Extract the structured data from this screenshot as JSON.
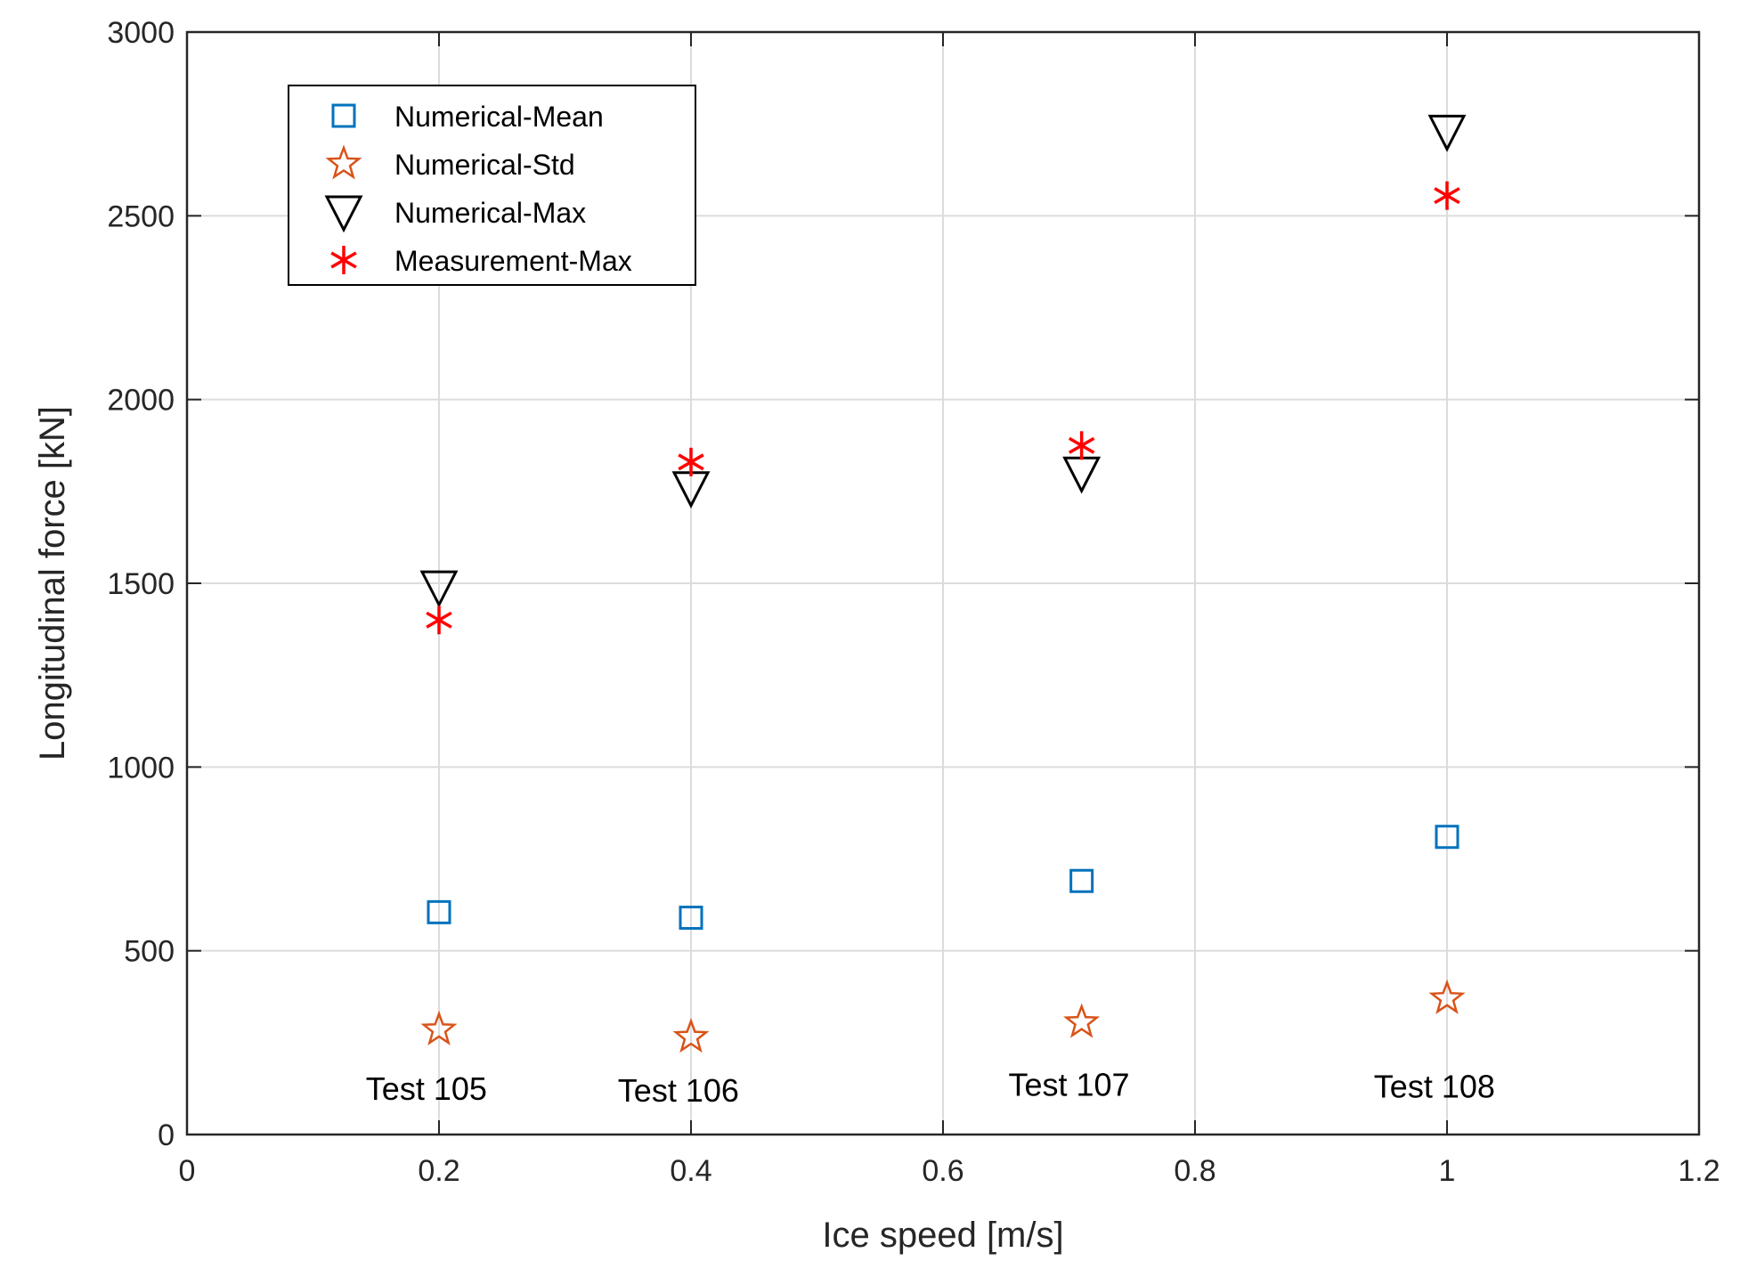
{
  "chart_data": {
    "type": "scatter",
    "title": "",
    "xlabel": "Ice speed [m/s]",
    "ylabel": "Longitudinal force [kN]",
    "xlim": [
      0,
      1.2
    ],
    "ylim": [
      0,
      3000
    ],
    "xticks": [
      0,
      0.2,
      0.4,
      0.6,
      0.8,
      1,
      1.2
    ],
    "xtick_labels": [
      "0",
      "0.2",
      "0.4",
      "0.6",
      "0.8",
      "1",
      "1.2"
    ],
    "yticks": [
      0,
      500,
      1000,
      1500,
      2000,
      2500,
      3000
    ],
    "ytick_labels": [
      "0",
      "500",
      "1000",
      "1500",
      "2000",
      "2500",
      "3000"
    ],
    "grid": true,
    "legend_position": "top-left",
    "x": [
      0.2,
      0.4,
      0.71,
      1.0
    ],
    "series": [
      {
        "name": "Numerical-Mean",
        "marker": "square",
        "color": "#0072BD",
        "values": [
          605,
          590,
          690,
          810
        ]
      },
      {
        "name": "Numerical-Std",
        "marker": "star",
        "color": "#D95319",
        "values": [
          285,
          265,
          305,
          370
        ]
      },
      {
        "name": "Numerical-Max",
        "marker": "triangle-down",
        "color": "#000000",
        "values": [
          1490,
          1760,
          1800,
          2730
        ]
      },
      {
        "name": "Measurement-Max",
        "marker": "asterisk",
        "color": "#FF0000",
        "values": [
          1400,
          1830,
          1875,
          2555
        ]
      }
    ],
    "annotations": [
      {
        "text": "Test 105",
        "x": 0.19,
        "y": 95
      },
      {
        "text": "Test 106",
        "x": 0.39,
        "y": 90
      },
      {
        "text": "Test 107",
        "x": 0.7,
        "y": 105
      },
      {
        "text": "Test 108",
        "x": 0.99,
        "y": 100
      }
    ]
  }
}
